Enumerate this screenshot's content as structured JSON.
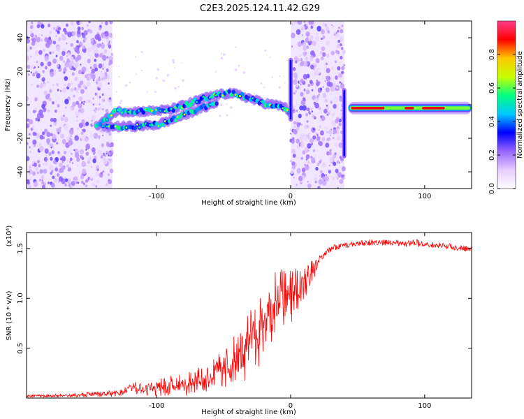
{
  "title": "C2E3.2025.124.11.42.G29",
  "chart_data": [
    {
      "type": "heatmap",
      "title": "C2E3.2025.124.11.42.G29",
      "xlabel": "Height of straight line (km)",
      "ylabel": "Frequency (Hz)",
      "xlim": [
        -197,
        135
      ],
      "ylim": [
        -50,
        50
      ],
      "xticks": [
        -100,
        0,
        100
      ],
      "yticks": [
        -40,
        -20,
        0,
        20,
        40
      ],
      "colorbar": {
        "label": "Normalized spectral amplitude",
        "range": [
          0,
          1
        ],
        "ticks": [
          "0.0",
          "0.2",
          "0.4",
          "0.6",
          "0.8"
        ],
        "colors": [
          "#ffffff",
          "#e6ccff",
          "#9966ff",
          "#0000ff",
          "#00c8ff",
          "#00ff80",
          "#c8ff00",
          "#ffc800",
          "#ff0000",
          "#ff3c8c"
        ]
      },
      "regions": [
        {
          "name": "noise",
          "x": [
            -197,
            -133
          ],
          "freq": [
            -50,
            50
          ],
          "level": 0.2
        },
        {
          "name": "noise",
          "x": [
            0,
            40
          ],
          "freq": [
            -50,
            50
          ],
          "level": 0.2
        }
      ],
      "ridge": [
        {
          "x": -145,
          "freq": -13
        },
        {
          "x": -130,
          "freq": -4
        },
        {
          "x": -110,
          "freq": -4
        },
        {
          "x": -90,
          "freq": -3
        },
        {
          "x": -75,
          "freq": 1
        },
        {
          "x": -60,
          "freq": 5
        },
        {
          "x": -45,
          "freq": 7
        },
        {
          "x": -35,
          "freq": 5
        },
        {
          "x": -20,
          "freq": 1
        },
        {
          "x": -5,
          "freq": -1
        },
        {
          "x": 0,
          "freq": -5
        }
      ],
      "lower_ridge": [
        {
          "x": -140,
          "freq": -13
        },
        {
          "x": -120,
          "freq": -13
        },
        {
          "x": -100,
          "freq": -12
        },
        {
          "x": -85,
          "freq": -8
        },
        {
          "x": -70,
          "freq": -3
        },
        {
          "x": -55,
          "freq": 1
        }
      ],
      "stable_line": {
        "x": [
          43,
          135
        ],
        "freq": -2
      },
      "spikes": [
        {
          "x": 0,
          "freq": [
            -10,
            28
          ]
        },
        {
          "x": 40,
          "freq": [
            -32,
            10
          ]
        }
      ]
    },
    {
      "type": "line",
      "xlabel": "Height of straight line (km)",
      "ylabel": "SNR (10 * v/v)",
      "y_scale_label": "(x10⁴)",
      "xlim": [
        -197,
        135
      ],
      "ylim": [
        0,
        1.66
      ],
      "xticks": [
        -100,
        0,
        100
      ],
      "yticks": [
        0.5,
        1.0,
        1.5
      ],
      "series": [
        {
          "color": "#ff0000",
          "x": [
            -197,
            -160,
            -140,
            -125,
            -120,
            -110,
            -100,
            -90,
            -80,
            -70,
            -60,
            -50,
            -40,
            -35,
            -30,
            -25,
            -20,
            -15,
            -10,
            -5,
            0,
            5,
            10,
            15,
            20,
            25,
            30,
            35,
            40,
            45,
            50,
            60,
            70,
            80,
            85,
            90,
            95,
            100,
            110,
            120,
            135
          ],
          "values": [
            0.02,
            0.03,
            0.04,
            0.06,
            0.13,
            0.08,
            0.1,
            0.12,
            0.14,
            0.16,
            0.2,
            0.3,
            0.38,
            0.45,
            0.55,
            0.65,
            0.75,
            0.9,
            0.95,
            1.0,
            1.05,
            1.1,
            1.18,
            1.25,
            1.35,
            1.45,
            1.5,
            1.52,
            1.53,
            1.54,
            1.55,
            1.56,
            1.56,
            1.55,
            1.54,
            1.56,
            1.55,
            1.54,
            1.53,
            1.52,
            1.49
          ],
          "noise": [
            0.01,
            0.02,
            0.03,
            0.04,
            0.06,
            0.07,
            0.09,
            0.1,
            0.12,
            0.14,
            0.16,
            0.2,
            0.28,
            0.3,
            0.34,
            0.38,
            0.38,
            0.35,
            0.35,
            0.32,
            0.3,
            0.25,
            0.2,
            0.15,
            0.06,
            0.04,
            0.03,
            0.03,
            0.03,
            0.03,
            0.03,
            0.03,
            0.03,
            0.03,
            0.03,
            0.04,
            0.04,
            0.03,
            0.03,
            0.03,
            0.03
          ]
        }
      ]
    }
  ]
}
